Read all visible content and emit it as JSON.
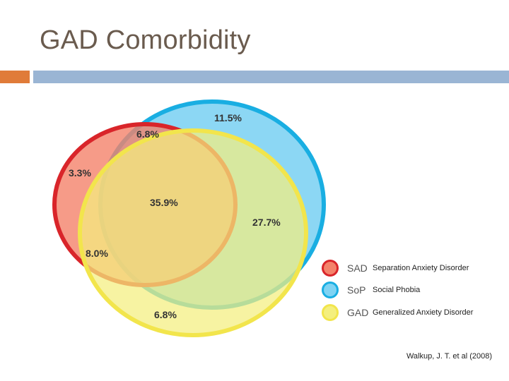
{
  "slide": {
    "title": "GAD Comorbidity",
    "citation": "Walkup, J. T. et al (2008)"
  },
  "accent_bar": {
    "left_color": "#e07b39",
    "right_color": "#9ab5d4"
  },
  "venn": {
    "sets": [
      {
        "abbr": "SAD",
        "name": "Separation Anxiety Disorder",
        "fill": "#f4826a",
        "stroke": "#d9252a"
      },
      {
        "abbr": "SoP",
        "name": "Social Phobia",
        "fill": "#7fd3f3",
        "stroke": "#19aee2"
      },
      {
        "abbr": "GAD",
        "name": "Generalized Anxiety Disorder",
        "fill": "#f4ef7e",
        "stroke": "#f2e54c"
      }
    ],
    "regions": [
      {
        "id": "sop-only",
        "label": "11.5%"
      },
      {
        "id": "sad-sop",
        "label": "6.8%"
      },
      {
        "id": "sad-only",
        "label": "3.3%"
      },
      {
        "id": "all-three",
        "label": "35.9%"
      },
      {
        "id": "sop-gad",
        "label": "27.7%"
      },
      {
        "id": "sad-gad",
        "label": "8.0%"
      },
      {
        "id": "gad-only",
        "label": "6.8%"
      }
    ]
  }
}
